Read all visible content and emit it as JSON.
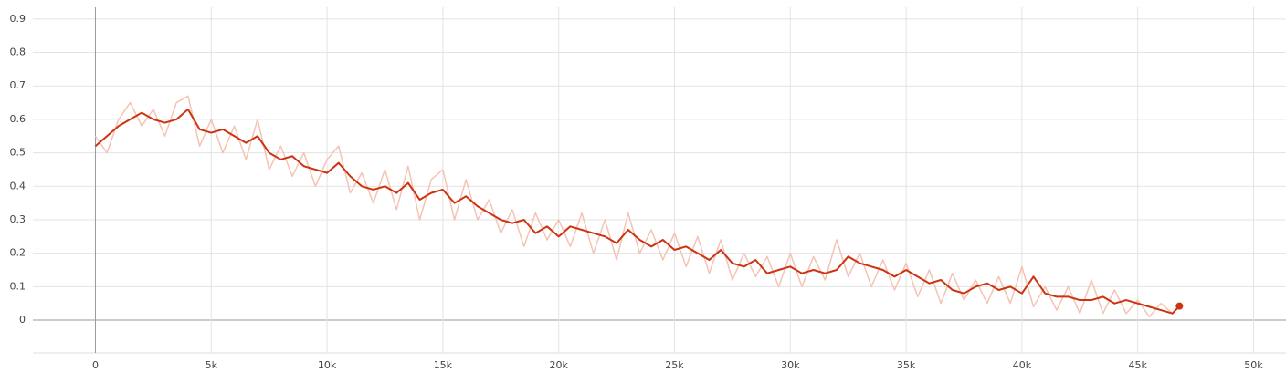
{
  "chart_data": {
    "type": "line",
    "x": [
      0,
      500,
      1000,
      1500,
      2000,
      2500,
      3000,
      3500,
      4000,
      4500,
      5000,
      5500,
      6000,
      6500,
      7000,
      7500,
      8000,
      8500,
      9000,
      9500,
      10000,
      10500,
      11000,
      11500,
      12000,
      12500,
      13000,
      13500,
      14000,
      14500,
      15000,
      15500,
      16000,
      16500,
      17000,
      17500,
      18000,
      18500,
      19000,
      19500,
      20000,
      20500,
      21000,
      21500,
      22000,
      22500,
      23000,
      23500,
      24000,
      24500,
      25000,
      25500,
      26000,
      26500,
      27000,
      27500,
      28000,
      28500,
      29000,
      29500,
      30000,
      30500,
      31000,
      31500,
      32000,
      32500,
      33000,
      33500,
      34000,
      34500,
      35000,
      35500,
      36000,
      36500,
      37000,
      37500,
      38000,
      38500,
      39000,
      39500,
      40000,
      40500,
      41000,
      41500,
      42000,
      42500,
      43000,
      43500,
      44000,
      44500,
      45000,
      45500,
      46000,
      46500,
      46800
    ],
    "series": [
      {
        "color": "#f4c3b4",
        "values": [
          0.55,
          0.5,
          0.6,
          0.65,
          0.58,
          0.63,
          0.55,
          0.65,
          0.67,
          0.52,
          0.6,
          0.5,
          0.58,
          0.48,
          0.6,
          0.45,
          0.52,
          0.43,
          0.5,
          0.4,
          0.48,
          0.52,
          0.38,
          0.44,
          0.35,
          0.45,
          0.33,
          0.46,
          0.3,
          0.42,
          0.45,
          0.3,
          0.42,
          0.3,
          0.36,
          0.26,
          0.33,
          0.22,
          0.32,
          0.24,
          0.3,
          0.22,
          0.32,
          0.2,
          0.3,
          0.18,
          0.32,
          0.2,
          0.27,
          0.18,
          0.26,
          0.16,
          0.25,
          0.14,
          0.24,
          0.12,
          0.2,
          0.13,
          0.19,
          0.1,
          0.2,
          0.1,
          0.19,
          0.12,
          0.24,
          0.13,
          0.2,
          0.1,
          0.18,
          0.09,
          0.17,
          0.07,
          0.15,
          0.05,
          0.14,
          0.06,
          0.12,
          0.05,
          0.13,
          0.05,
          0.16,
          0.04,
          0.1,
          0.03,
          0.1,
          0.02,
          0.12,
          0.02,
          0.09,
          0.02,
          0.06,
          0.01,
          0.05,
          0.02,
          0.042
        ]
      },
      {
        "color": "#cc3311",
        "values": [
          0.52,
          0.55,
          0.58,
          0.6,
          0.62,
          0.6,
          0.59,
          0.6,
          0.63,
          0.57,
          0.56,
          0.57,
          0.55,
          0.53,
          0.55,
          0.5,
          0.48,
          0.49,
          0.46,
          0.45,
          0.44,
          0.47,
          0.43,
          0.4,
          0.39,
          0.4,
          0.38,
          0.41,
          0.36,
          0.38,
          0.39,
          0.35,
          0.37,
          0.34,
          0.32,
          0.3,
          0.29,
          0.3,
          0.26,
          0.28,
          0.25,
          0.28,
          0.27,
          0.26,
          0.25,
          0.23,
          0.27,
          0.24,
          0.22,
          0.24,
          0.21,
          0.22,
          0.2,
          0.18,
          0.21,
          0.17,
          0.16,
          0.18,
          0.14,
          0.15,
          0.16,
          0.14,
          0.15,
          0.14,
          0.15,
          0.19,
          0.17,
          0.16,
          0.15,
          0.13,
          0.15,
          0.13,
          0.11,
          0.12,
          0.09,
          0.08,
          0.1,
          0.11,
          0.09,
          0.1,
          0.08,
          0.13,
          0.08,
          0.07,
          0.07,
          0.06,
          0.06,
          0.07,
          0.05,
          0.06,
          0.05,
          0.04,
          0.03,
          0.02,
          0.042
        ]
      }
    ],
    "xlim": [
      -2700,
      51400
    ],
    "ylim": [
      -0.098,
      0.935
    ],
    "xticks": [
      0,
      {
        "value": 5000,
        "label": "5k"
      },
      {
        "value": 10000,
        "label": "10k"
      },
      {
        "value": 15000,
        "label": "15k"
      },
      {
        "value": 20000,
        "label": "20k"
      },
      {
        "value": 25000,
        "label": "25k"
      },
      {
        "value": 30000,
        "label": "30k"
      },
      {
        "value": 35000,
        "label": "35k"
      },
      {
        "value": 40000,
        "label": "40k"
      },
      {
        "value": 45000,
        "label": "45k"
      },
      {
        "value": 50000,
        "label": "50k"
      }
    ],
    "yticks": [
      0,
      0.1,
      0.2,
      0.3,
      0.4,
      0.5,
      0.6,
      0.7,
      0.8,
      0.9
    ],
    "grid": true
  }
}
